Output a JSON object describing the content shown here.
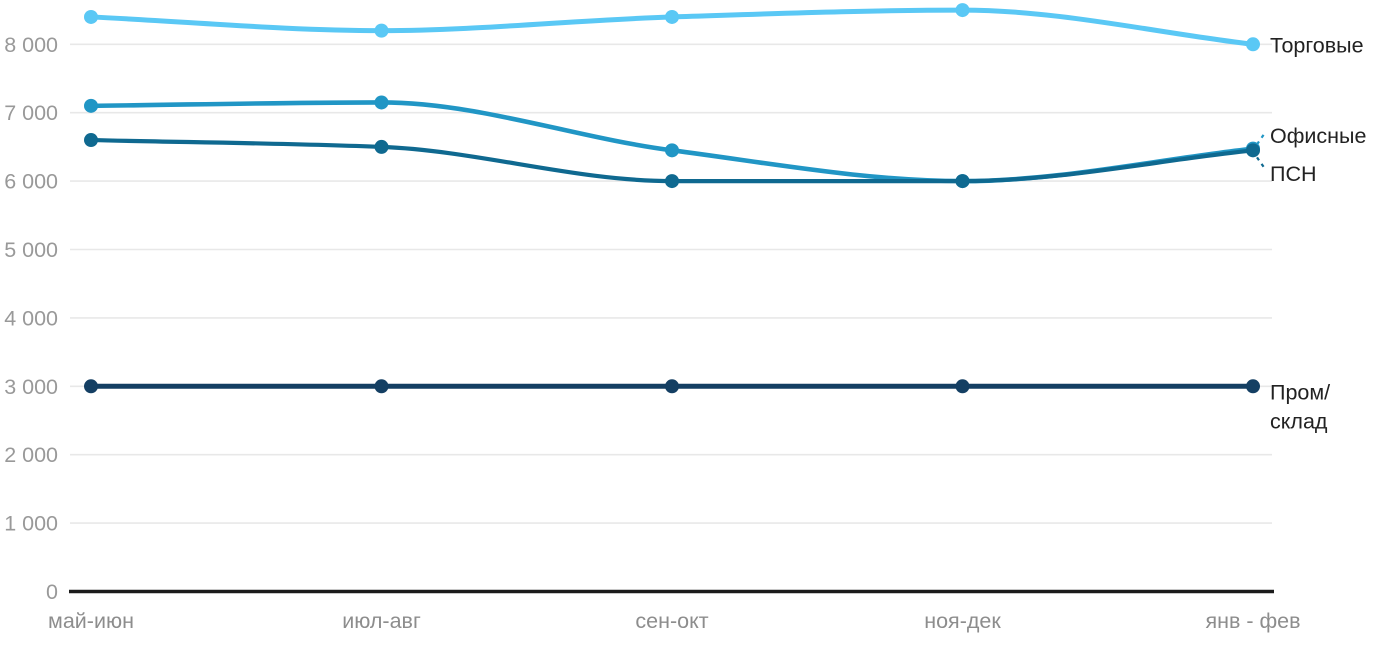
{
  "page": {
    "background_color": "#ffffff"
  },
  "chart_data": {
    "type": "line",
    "title": "",
    "xlabel": "",
    "ylabel": "",
    "categories": [
      "май-июн",
      "июл-авг",
      "сен-окт",
      "ноя-дек",
      "янв - фев"
    ],
    "series": [
      {
        "key": "torgovye",
        "name": "Торговые",
        "color": "#5ac8f5",
        "values": [
          8400,
          8200,
          8400,
          8500,
          8000
        ]
      },
      {
        "key": "ofisnye",
        "name": "Офисные",
        "color": "#2196c5",
        "values": [
          7100,
          7150,
          6450,
          6000,
          6475
        ]
      },
      {
        "key": "psn",
        "name": "ПСН",
        "color": "#0f6990",
        "values": [
          6600,
          6500,
          6000,
          6000,
          6450
        ]
      },
      {
        "key": "prom-sklad",
        "name": "Пром/склад",
        "label_lines": [
          "Пром/",
          "склад"
        ],
        "color": "#143f63",
        "values": [
          3000,
          3000,
          3000,
          3000,
          3000
        ]
      }
    ],
    "ylim": [
      0,
      8600
    ],
    "ytick_step": 1000,
    "ytick_labels": [
      "0",
      "1 000",
      "2 000",
      "3 000",
      "4 000",
      "5 000",
      "6 000",
      "7 000",
      "8 000"
    ],
    "grid": "horizontal-only",
    "legend_position": "right-of-line-endpoints",
    "colors": {
      "y_tick_label": "#999999",
      "x_tick_label": "#8d8d8d",
      "gridline": "#e8e8e8",
      "axis_line": "#1b1b1b",
      "series_label": "#222222"
    }
  }
}
